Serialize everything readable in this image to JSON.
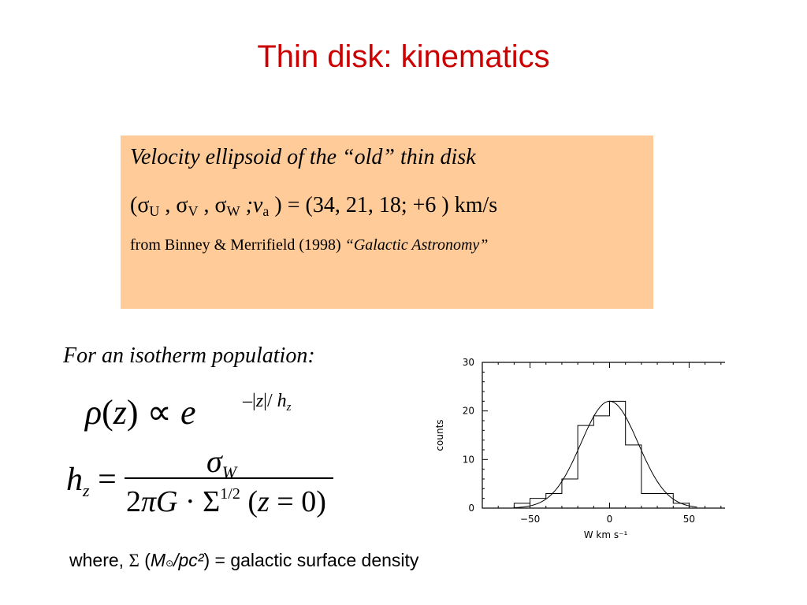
{
  "title": "Thin disk:  kinematics",
  "box": {
    "heading": "Velocity ellipsoid of the “old” thin disk",
    "sigma_line": {
      "sigma_u": "U",
      "sigma_v": "V",
      "sigma_w": "W",
      "v_a": "a",
      "values": ") = (34, 21, 18; +6 )  km/s"
    },
    "source": "from Binney & Merrifield (1998)",
    "book": "“Galactic Astronomy”",
    "background_color": "#ffcc99"
  },
  "isotherm_label": "For an isotherm population:",
  "where_line": {
    "prefix": "where, ",
    "sigma": "Σ",
    "units_open": " (",
    "msun": "M",
    "sun_symbol": "⊙",
    "units": "/pc²",
    "suffix": ") = galactic surface density"
  },
  "title_color": "#cc0000",
  "chart_data": {
    "type": "bar",
    "style": "step histogram with gaussian fit",
    "xlabel": "W  km  s⁻¹",
    "ylabel": "counts",
    "xlim": [
      -80,
      80
    ],
    "ylim": [
      0,
      30
    ],
    "xticks": [
      "−50",
      "0",
      "50"
    ],
    "yticks": [
      "0",
      "10",
      "20",
      "30"
    ],
    "bin_edges": [
      -60,
      -50,
      -40,
      -30,
      -20,
      -10,
      0,
      10,
      20,
      30,
      40,
      50
    ],
    "counts": [
      1,
      2,
      3,
      6,
      17,
      19,
      22,
      13,
      3,
      3,
      1
    ],
    "fit": {
      "type": "gaussian",
      "mean": 0,
      "sigma": 18,
      "peak": 22
    },
    "grid": false
  }
}
